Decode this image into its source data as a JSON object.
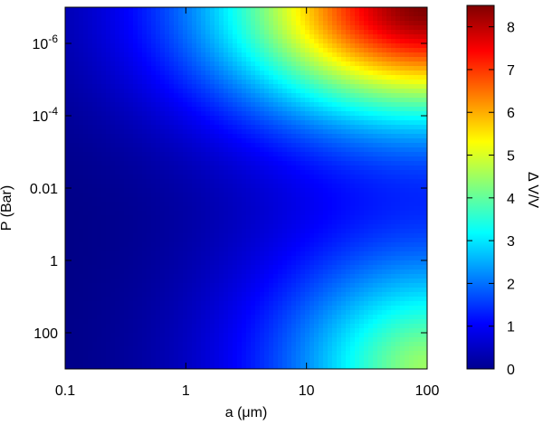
{
  "chart_data": {
    "type": "heatmap",
    "title": "",
    "xlabel": "a (μm)",
    "ylabel": "P (Bar)",
    "colorbar_label": "Δ V/V",
    "x_scale": "log",
    "y_scale": "log",
    "y_inverted": true,
    "xlim": [
      0.1,
      100
    ],
    "ylim_bar": [
      1e-07,
      1000
    ],
    "x_ticks": [
      {
        "value": 0.1,
        "label": "0.1"
      },
      {
        "value": 1,
        "label": "1"
      },
      {
        "value": 10,
        "label": "10"
      },
      {
        "value": 100,
        "label": "100"
      }
    ],
    "y_ticks": [
      {
        "value": 1e-06,
        "base": "10",
        "exp": "-6"
      },
      {
        "value": 0.0001,
        "base": "10",
        "exp": "-4"
      },
      {
        "value": 0.01,
        "base": "0.01",
        "exp": ""
      },
      {
        "value": 1,
        "base": "1",
        "exp": ""
      },
      {
        "value": 100,
        "base": "100",
        "exp": ""
      }
    ],
    "colorbar_range": [
      0,
      8.5
    ],
    "colorbar_ticks": [
      "0",
      "1",
      "2",
      "3",
      "4",
      "5",
      "6",
      "7",
      "8"
    ],
    "colormap": "jet",
    "grid": false,
    "value_peaks": [
      {
        "a": 100,
        "P": 1e-07,
        "value": 8.5
      },
      {
        "a": 100,
        "P": 1000,
        "value": 4.5
      }
    ]
  }
}
